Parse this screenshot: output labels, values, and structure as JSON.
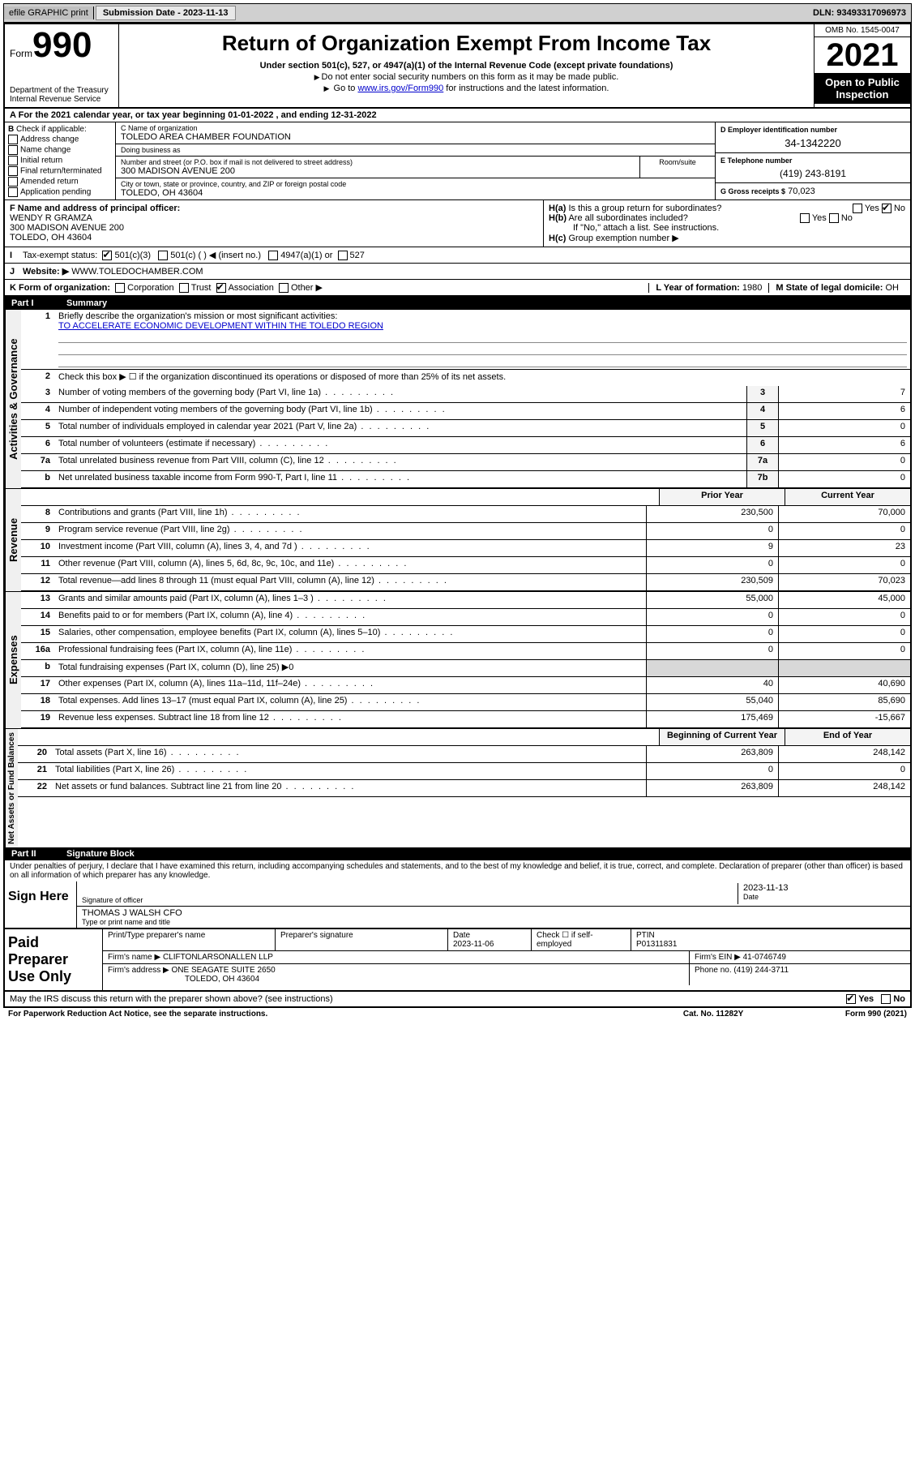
{
  "topbar": {
    "efile": "efile GRAPHIC print",
    "submission_label": "Submission Date - 2023-11-13",
    "dln": "DLN: 93493317096973"
  },
  "header": {
    "form_word": "Form",
    "form_number": "990",
    "dept": "Department of the Treasury",
    "irs": "Internal Revenue Service",
    "title": "Return of Organization Exempt From Income Tax",
    "subtitle": "Under section 501(c), 527, or 4947(a)(1) of the Internal Revenue Code (except private foundations)",
    "note1": "Do not enter social security numbers on this form as it may be made public.",
    "note2_pre": "Go to ",
    "note2_link": "www.irs.gov/Form990",
    "note2_post": " for instructions and the latest information.",
    "omb": "OMB No. 1545-0047",
    "year": "2021",
    "open": "Open to Public Inspection"
  },
  "row_a": "For the 2021 calendar year, or tax year beginning 01-01-2022   , and ending 12-31-2022",
  "section_b": {
    "label": "Check if applicable:",
    "items": [
      "Address change",
      "Name change",
      "Initial return",
      "Final return/terminated",
      "Amended return",
      "Application pending"
    ]
  },
  "section_c": {
    "name_label": "C Name of organization",
    "name": "TOLEDO AREA CHAMBER FOUNDATION",
    "dba_label": "Doing business as",
    "dba": "",
    "addr_label": "Number and street (or P.O. box if mail is not delivered to street address)",
    "room_label": "Room/suite",
    "addr": "300 MADISON AVENUE 200",
    "city_label": "City or town, state or province, country, and ZIP or foreign postal code",
    "city": "TOLEDO, OH  43604"
  },
  "section_d": {
    "label": "D Employer identification number",
    "ein": "34-1342220"
  },
  "section_e": {
    "label": "E Telephone number",
    "phone": "(419) 243-8191"
  },
  "section_g": {
    "label": "G Gross receipts $",
    "value": "70,023"
  },
  "section_f": {
    "label": "F  Name and address of principal officer:",
    "name": "WENDY R GRAMZA",
    "addr1": "300 MADISON AVENUE 200",
    "addr2": "TOLEDO, OH  43604"
  },
  "section_h": {
    "ha": "Is this a group return for subordinates?",
    "hb": "Are all subordinates included?",
    "hb_note": "If \"No,\" attach a list. See instructions.",
    "hc": "Group exemption number ▶",
    "yes": "Yes",
    "no": "No"
  },
  "row_i": {
    "label": "Tax-exempt status:",
    "opts": [
      "501(c)(3)",
      "501(c) (   ) ◀ (insert no.)",
      "4947(a)(1) or",
      "527"
    ]
  },
  "row_j": {
    "label": "Website: ▶",
    "value": "WWW.TOLEDOCHAMBER.COM"
  },
  "row_k": {
    "label": "K Form of organization:",
    "opts": [
      "Corporation",
      "Trust",
      "Association",
      "Other ▶"
    ]
  },
  "row_l": {
    "label": "L Year of formation:",
    "value": "1980"
  },
  "row_m": {
    "label": "M State of legal domicile:",
    "value": "OH"
  },
  "part1": {
    "num": "Part I",
    "title": "Summary"
  },
  "mission": {
    "q": "Briefly describe the organization's mission or most significant activities:",
    "text": "TO ACCELERATE ECONOMIC DEVELOPMENT WITHIN THE TOLEDO REGION"
  },
  "line2": "Check this box ▶ ☐  if the organization discontinued its operations or disposed of more than 25% of its net assets.",
  "gov_lines": [
    {
      "n": "3",
      "d": "Number of voting members of the governing body (Part VI, line 1a)",
      "c": "3",
      "v": "7"
    },
    {
      "n": "4",
      "d": "Number of independent voting members of the governing body (Part VI, line 1b)",
      "c": "4",
      "v": "6"
    },
    {
      "n": "5",
      "d": "Total number of individuals employed in calendar year 2021 (Part V, line 2a)",
      "c": "5",
      "v": "0"
    },
    {
      "n": "6",
      "d": "Total number of volunteers (estimate if necessary)",
      "c": "6",
      "v": "6"
    },
    {
      "n": "7a",
      "d": "Total unrelated business revenue from Part VIII, column (C), line 12",
      "c": "7a",
      "v": "0"
    },
    {
      "n": "b",
      "d": "Net unrelated business taxable income from Form 990-T, Part I, line 11",
      "c": "7b",
      "v": "0"
    }
  ],
  "colheads": {
    "prior": "Prior Year",
    "current": "Current Year"
  },
  "rev_lines": [
    {
      "n": "8",
      "d": "Contributions and grants (Part VIII, line 1h)",
      "p": "230,500",
      "c": "70,000"
    },
    {
      "n": "9",
      "d": "Program service revenue (Part VIII, line 2g)",
      "p": "0",
      "c": "0"
    },
    {
      "n": "10",
      "d": "Investment income (Part VIII, column (A), lines 3, 4, and 7d )",
      "p": "9",
      "c": "23"
    },
    {
      "n": "11",
      "d": "Other revenue (Part VIII, column (A), lines 5, 6d, 8c, 9c, 10c, and 11e)",
      "p": "0",
      "c": "0"
    },
    {
      "n": "12",
      "d": "Total revenue—add lines 8 through 11 (must equal Part VIII, column (A), line 12)",
      "p": "230,509",
      "c": "70,023"
    }
  ],
  "exp_lines": [
    {
      "n": "13",
      "d": "Grants and similar amounts paid (Part IX, column (A), lines 1–3 )",
      "p": "55,000",
      "c": "45,000"
    },
    {
      "n": "14",
      "d": "Benefits paid to or for members (Part IX, column (A), line 4)",
      "p": "0",
      "c": "0"
    },
    {
      "n": "15",
      "d": "Salaries, other compensation, employee benefits (Part IX, column (A), lines 5–10)",
      "p": "0",
      "c": "0"
    },
    {
      "n": "16a",
      "d": "Professional fundraising fees (Part IX, column (A), line 11e)",
      "p": "0",
      "c": "0"
    }
  ],
  "line16b": "Total fundraising expenses (Part IX, column (D), line 25) ▶0",
  "exp_lines2": [
    {
      "n": "17",
      "d": "Other expenses (Part IX, column (A), lines 11a–11d, 11f–24e)",
      "p": "40",
      "c": "40,690"
    },
    {
      "n": "18",
      "d": "Total expenses. Add lines 13–17 (must equal Part IX, column (A), line 25)",
      "p": "55,040",
      "c": "85,690"
    },
    {
      "n": "19",
      "d": "Revenue less expenses. Subtract line 18 from line 12",
      "p": "175,469",
      "c": "-15,667"
    }
  ],
  "colheads2": {
    "beg": "Beginning of Current Year",
    "end": "End of Year"
  },
  "net_lines": [
    {
      "n": "20",
      "d": "Total assets (Part X, line 16)",
      "p": "263,809",
      "c": "248,142"
    },
    {
      "n": "21",
      "d": "Total liabilities (Part X, line 26)",
      "p": "0",
      "c": "0"
    },
    {
      "n": "22",
      "d": "Net assets or fund balances. Subtract line 21 from line 20",
      "p": "263,809",
      "c": "248,142"
    }
  ],
  "part2": {
    "num": "Part II",
    "title": "Signature Block"
  },
  "sig": {
    "intro": "Under penalties of perjury, I declare that I have examined this return, including accompanying schedules and statements, and to the best of my knowledge and belief, it is true, correct, and complete. Declaration of preparer (other than officer) is based on all information of which preparer has any knowledge.",
    "sign_here": "Sign Here",
    "sig_officer": "Signature of officer",
    "date_label": "Date",
    "date": "2023-11-13",
    "name": "THOMAS J WALSH  CFO",
    "name_label": "Type or print name and title"
  },
  "paid": {
    "title": "Paid Preparer Use Only",
    "h1": "Print/Type preparer's name",
    "h2": "Preparer's signature",
    "h3_label": "Date",
    "h3": "2023-11-06",
    "h4_label": "Check ☐ if self-employed",
    "h5_label": "PTIN",
    "h5": "P01311831",
    "firm_name_label": "Firm's name    ▶",
    "firm_name": "CLIFTONLARSONALLEN LLP",
    "firm_ein_label": "Firm's EIN ▶",
    "firm_ein": "41-0746749",
    "firm_addr_label": "Firm's address ▶",
    "firm_addr1": "ONE SEAGATE SUITE 2650",
    "firm_addr2": "TOLEDO, OH  43604",
    "phone_label": "Phone no.",
    "phone": "(419) 244-3711"
  },
  "discuss": {
    "q": "May the IRS discuss this return with the preparer shown above? (see instructions)",
    "yes": "Yes",
    "no": "No"
  },
  "footer": {
    "left": "For Paperwork Reduction Act Notice, see the separate instructions.",
    "mid": "Cat. No. 11282Y",
    "right": "Form 990 (2021)"
  },
  "vert": {
    "gov": "Activities & Governance",
    "rev": "Revenue",
    "exp": "Expenses",
    "net": "Net Assets or Fund Balances"
  }
}
